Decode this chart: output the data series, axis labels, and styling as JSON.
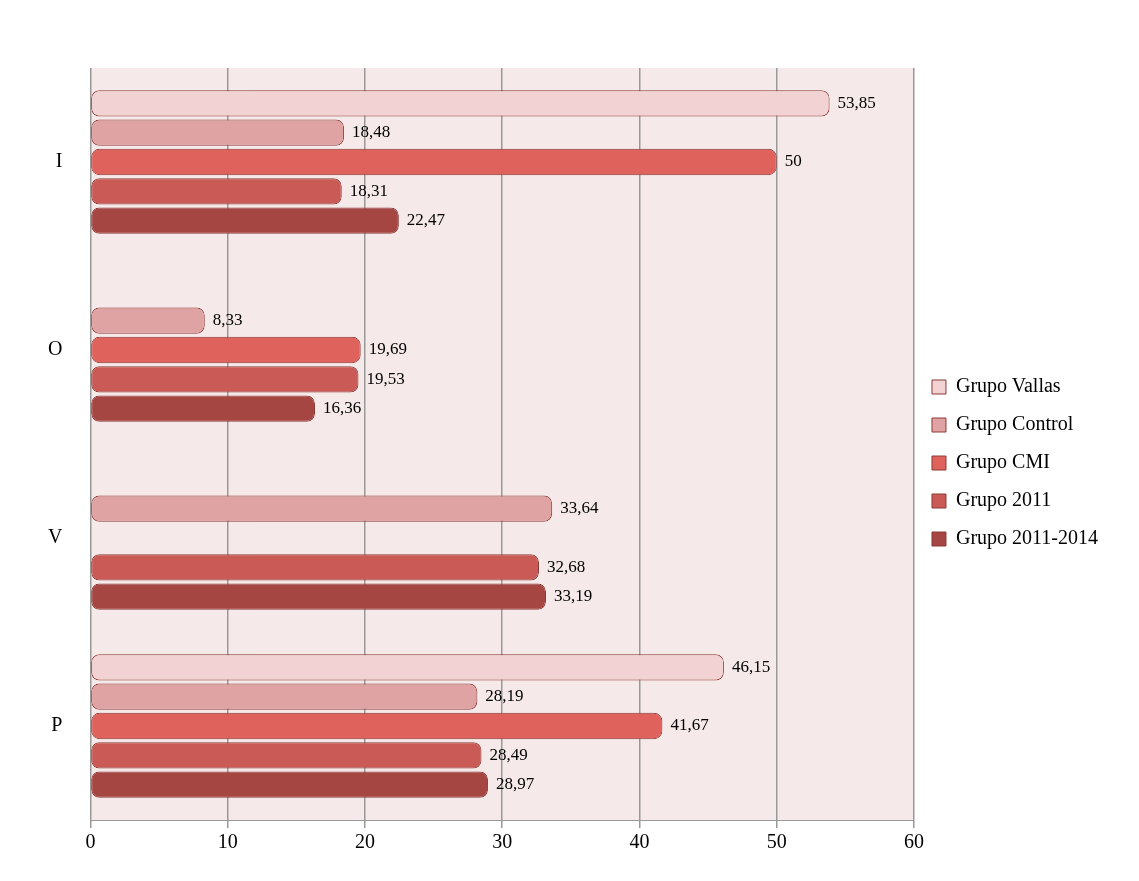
{
  "chart_data": {
    "type": "bar",
    "orientation": "horizontal",
    "categories": [
      "I",
      "O",
      "V",
      "P"
    ],
    "series": [
      {
        "name": "Grupo Vallas",
        "color": "#f2d2d2",
        "values": [
          53.85,
          null,
          null,
          46.15
        ],
        "value_labels": [
          "53,85",
          null,
          null,
          "46,15"
        ]
      },
      {
        "name": "Grupo Control",
        "color": "#e0a3a3",
        "values": [
          18.48,
          8.33,
          33.64,
          28.19
        ],
        "value_labels": [
          "18,48",
          "8,33",
          "33,64",
          "28,19"
        ]
      },
      {
        "name": "Grupo CMI",
        "color": "#e0625c",
        "values": [
          50,
          19.69,
          null,
          41.67
        ],
        "value_labels": [
          "50",
          "19,69",
          null,
          "41,67"
        ]
      },
      {
        "name": "Grupo 2011",
        "color": "#c95a55",
        "values": [
          18.31,
          19.53,
          32.68,
          28.49
        ],
        "value_labels": [
          "18,31",
          "19,53",
          "32,68",
          "28,49"
        ]
      },
      {
        "name": "Grupo 2011-2014",
        "color": "#a64642",
        "values": [
          22.47,
          16.36,
          33.19,
          28.97
        ],
        "value_labels": [
          "22,47",
          "16,36",
          "33,19",
          "28,97"
        ]
      }
    ],
    "xlim": [
      0,
      60
    ],
    "xticks": [
      0,
      10,
      20,
      30,
      40,
      50,
      60
    ],
    "grid": "x",
    "legend": "right"
  }
}
